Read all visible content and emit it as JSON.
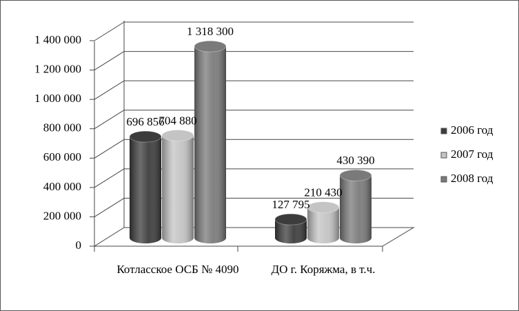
{
  "chart_data": {
    "type": "bar3d",
    "categories": [
      "Котласское ОСБ № 4090",
      "ДО г. Коряжма, в т.ч."
    ],
    "series": [
      {
        "name": "2006 год",
        "color": "#3c3c3c",
        "values": [
          696856,
          127795
        ],
        "value_labels": [
          "696 856",
          "127 795"
        ]
      },
      {
        "name": "2007 год",
        "color": "#c4c4c4",
        "values": [
          704880,
          210430
        ],
        "value_labels": [
          "704 880",
          "210 430"
        ]
      },
      {
        "name": "2008 год",
        "color": "#7a7a7a",
        "values": [
          1318300,
          430390
        ],
        "value_labels": [
          "1 318 300",
          "430 390"
        ]
      }
    ],
    "ylim": [
      0,
      1400000
    ],
    "yticks": [
      0,
      {
        "value": 200000,
        "label": "200 000"
      },
      {
        "value": 400000,
        "label": "400 000"
      },
      {
        "value": 600000,
        "label": "600 000"
      },
      {
        "value": 800000,
        "label": "800 000"
      },
      {
        "value": 1000000,
        "label": "1 000 000"
      },
      {
        "value": 1200000,
        "label": "1 200 000"
      },
      {
        "value": 1400000,
        "label": "1 400 000"
      }
    ],
    "grid": true,
    "legend": "right"
  }
}
